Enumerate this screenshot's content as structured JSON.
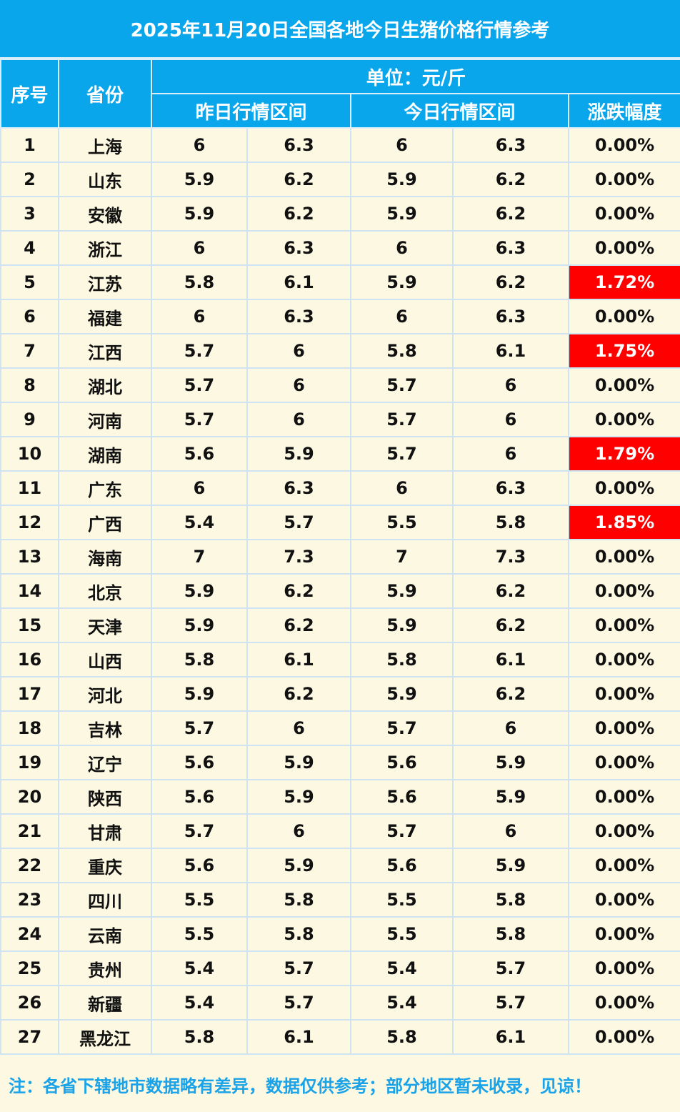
{
  "title": "2025年11月20日全国各地今日生猪价格行情参考",
  "headers": {
    "index": "序号",
    "province": "省份",
    "unit": "单位：元/斤",
    "yesterday": "昨日行情区间",
    "today": "今日行情区间",
    "change": "涨跌幅度"
  },
  "colors": {
    "header_bg": "#0aa6ec",
    "row_bg": "#fdf8e1",
    "up_bg": "#ff0000",
    "footnote_text": "#1aa3e8"
  },
  "rows": [
    {
      "index": "1",
      "province": "上海",
      "y_low": "6",
      "y_high": "6.3",
      "t_low": "6",
      "t_high": "6.3",
      "change": "0.00%",
      "up": false
    },
    {
      "index": "2",
      "province": "山东",
      "y_low": "5.9",
      "y_high": "6.2",
      "t_low": "5.9",
      "t_high": "6.2",
      "change": "0.00%",
      "up": false
    },
    {
      "index": "3",
      "province": "安徽",
      "y_low": "5.9",
      "y_high": "6.2",
      "t_low": "5.9",
      "t_high": "6.2",
      "change": "0.00%",
      "up": false
    },
    {
      "index": "4",
      "province": "浙江",
      "y_low": "6",
      "y_high": "6.3",
      "t_low": "6",
      "t_high": "6.3",
      "change": "0.00%",
      "up": false
    },
    {
      "index": "5",
      "province": "江苏",
      "y_low": "5.8",
      "y_high": "6.1",
      "t_low": "5.9",
      "t_high": "6.2",
      "change": "1.72%",
      "up": true
    },
    {
      "index": "6",
      "province": "福建",
      "y_low": "6",
      "y_high": "6.3",
      "t_low": "6",
      "t_high": "6.3",
      "change": "0.00%",
      "up": false
    },
    {
      "index": "7",
      "province": "江西",
      "y_low": "5.7",
      "y_high": "6",
      "t_low": "5.8",
      "t_high": "6.1",
      "change": "1.75%",
      "up": true
    },
    {
      "index": "8",
      "province": "湖北",
      "y_low": "5.7",
      "y_high": "6",
      "t_low": "5.7",
      "t_high": "6",
      "change": "0.00%",
      "up": false
    },
    {
      "index": "9",
      "province": "河南",
      "y_low": "5.7",
      "y_high": "6",
      "t_low": "5.7",
      "t_high": "6",
      "change": "0.00%",
      "up": false
    },
    {
      "index": "10",
      "province": "湖南",
      "y_low": "5.6",
      "y_high": "5.9",
      "t_low": "5.7",
      "t_high": "6",
      "change": "1.79%",
      "up": true
    },
    {
      "index": "11",
      "province": "广东",
      "y_low": "6",
      "y_high": "6.3",
      "t_low": "6",
      "t_high": "6.3",
      "change": "0.00%",
      "up": false
    },
    {
      "index": "12",
      "province": "广西",
      "y_low": "5.4",
      "y_high": "5.7",
      "t_low": "5.5",
      "t_high": "5.8",
      "change": "1.85%",
      "up": true
    },
    {
      "index": "13",
      "province": "海南",
      "y_low": "7",
      "y_high": "7.3",
      "t_low": "7",
      "t_high": "7.3",
      "change": "0.00%",
      "up": false
    },
    {
      "index": "14",
      "province": "北京",
      "y_low": "5.9",
      "y_high": "6.2",
      "t_low": "5.9",
      "t_high": "6.2",
      "change": "0.00%",
      "up": false
    },
    {
      "index": "15",
      "province": "天津",
      "y_low": "5.9",
      "y_high": "6.2",
      "t_low": "5.9",
      "t_high": "6.2",
      "change": "0.00%",
      "up": false
    },
    {
      "index": "16",
      "province": "山西",
      "y_low": "5.8",
      "y_high": "6.1",
      "t_low": "5.8",
      "t_high": "6.1",
      "change": "0.00%",
      "up": false
    },
    {
      "index": "17",
      "province": "河北",
      "y_low": "5.9",
      "y_high": "6.2",
      "t_low": "5.9",
      "t_high": "6.2",
      "change": "0.00%",
      "up": false
    },
    {
      "index": "18",
      "province": "吉林",
      "y_low": "5.7",
      "y_high": "6",
      "t_low": "5.7",
      "t_high": "6",
      "change": "0.00%",
      "up": false
    },
    {
      "index": "19",
      "province": "辽宁",
      "y_low": "5.6",
      "y_high": "5.9",
      "t_low": "5.6",
      "t_high": "5.9",
      "change": "0.00%",
      "up": false
    },
    {
      "index": "20",
      "province": "陕西",
      "y_low": "5.6",
      "y_high": "5.9",
      "t_low": "5.6",
      "t_high": "5.9",
      "change": "0.00%",
      "up": false
    },
    {
      "index": "21",
      "province": "甘肃",
      "y_low": "5.7",
      "y_high": "6",
      "t_low": "5.7",
      "t_high": "6",
      "change": "0.00%",
      "up": false
    },
    {
      "index": "22",
      "province": "重庆",
      "y_low": "5.6",
      "y_high": "5.9",
      "t_low": "5.6",
      "t_high": "5.9",
      "change": "0.00%",
      "up": false
    },
    {
      "index": "23",
      "province": "四川",
      "y_low": "5.5",
      "y_high": "5.8",
      "t_low": "5.5",
      "t_high": "5.8",
      "change": "0.00%",
      "up": false
    },
    {
      "index": "24",
      "province": "云南",
      "y_low": "5.5",
      "y_high": "5.8",
      "t_low": "5.5",
      "t_high": "5.8",
      "change": "0.00%",
      "up": false
    },
    {
      "index": "25",
      "province": "贵州",
      "y_low": "5.4",
      "y_high": "5.7",
      "t_low": "5.4",
      "t_high": "5.7",
      "change": "0.00%",
      "up": false
    },
    {
      "index": "26",
      "province": "新疆",
      "y_low": "5.4",
      "y_high": "5.7",
      "t_low": "5.4",
      "t_high": "5.7",
      "change": "0.00%",
      "up": false
    },
    {
      "index": "27",
      "province": "黑龙江",
      "y_low": "5.8",
      "y_high": "6.1",
      "t_low": "5.8",
      "t_high": "6.1",
      "change": "0.00%",
      "up": false
    }
  ],
  "footnote": "注：各省下辖地市数据略有差异，数据仅供参考；部分地区暂未收录，见谅！"
}
